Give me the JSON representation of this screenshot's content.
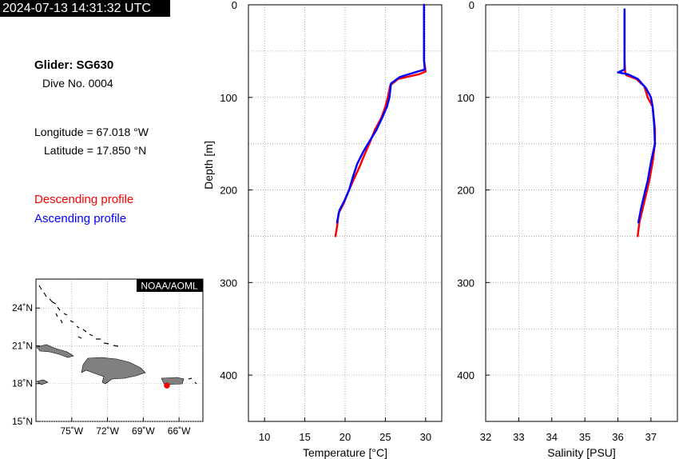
{
  "header": {
    "timestamp": "2024-07-13 14:31:32 UTC"
  },
  "info": {
    "glider": "Glider: SG630",
    "dive": "Dive No. 0004",
    "longitude": "Longitude = 67.018 °W",
    "latitude": "Latitude = 17.850 °N",
    "descending_label": "Descending profile",
    "ascending_label": "Ascending profile"
  },
  "colors": {
    "descending": "#ff0000",
    "ascending": "#0000ff",
    "land": "#808080"
  },
  "map": {
    "credit": "NOAA/AOML",
    "lon_ticks": [
      "75˚W",
      "72˚W",
      "69˚W",
      "66˚W"
    ],
    "lat_ticks": [
      "24˚N",
      "21˚N",
      "18˚N",
      "15˚N"
    ],
    "glider_position": {
      "lon": -67.018,
      "lat": 17.85
    }
  },
  "chart_data": [
    {
      "type": "line",
      "xlabel": "Temperature [°C]",
      "ylabel": "Depth [m]",
      "xlim": [
        8,
        32
      ],
      "ylim": [
        450,
        0
      ],
      "xticks": [
        10,
        15,
        20,
        25,
        30
      ],
      "yticks": [
        0,
        100,
        200,
        300,
        400
      ],
      "grid": true,
      "series": [
        {
          "name": "Descending profile",
          "x": [
            29.8,
            29.8,
            29.8,
            29.8,
            30.0,
            29.2,
            26.6,
            25.6,
            25.3,
            25.0,
            24.5,
            23.7,
            23.0,
            22.4,
            21.8,
            21.1,
            20.4,
            19.8,
            19.2,
            19.0,
            18.8
          ],
          "y": [
            0,
            20,
            40,
            60,
            72,
            75,
            80,
            87,
            100,
            110,
            122,
            135,
            150,
            162,
            175,
            188,
            202,
            215,
            225,
            240,
            250
          ]
        },
        {
          "name": "Ascending profile",
          "x": [
            29.8,
            29.8,
            29.8,
            29.8,
            29.9,
            29.0,
            26.8,
            25.7,
            25.5,
            25.2,
            24.6,
            23.9,
            23.2,
            22.3,
            21.5,
            21.0,
            20.5,
            19.9,
            19.3,
            19.0
          ],
          "y": [
            0,
            20,
            40,
            60,
            70,
            72,
            78,
            85,
            100,
            110,
            122,
            135,
            145,
            158,
            172,
            185,
            200,
            212,
            222,
            235
          ]
        }
      ]
    },
    {
      "type": "line",
      "xlabel": "Salinity [PSU]",
      "ylabel": "",
      "xlim": [
        32,
        37.8
      ],
      "ylim": [
        450,
        0
      ],
      "xticks": [
        32,
        33,
        34,
        35,
        36,
        37
      ],
      "yticks": [
        0,
        100,
        200,
        300,
        400
      ],
      "grid": true,
      "series": [
        {
          "name": "Descending profile",
          "x": [
            36.2,
            36.2,
            36.2,
            36.22,
            36.25,
            36.55,
            36.8,
            36.9,
            37.05,
            37.08,
            37.12,
            37.12,
            37.05,
            36.95,
            36.85,
            36.75,
            36.65,
            36.6
          ],
          "y": [
            5,
            30,
            60,
            73,
            76,
            80,
            88,
            100,
            110,
            120,
            135,
            150,
            170,
            190,
            205,
            220,
            235,
            250
          ]
        },
        {
          "name": "Ascending profile",
          "x": [
            36.2,
            36.2,
            36.2,
            36.2,
            36.0,
            36.3,
            36.6,
            36.85,
            37.0,
            37.05,
            37.1,
            37.12,
            37.0,
            36.9,
            36.8,
            36.7,
            36.62
          ],
          "y": [
            5,
            30,
            55,
            70,
            73,
            75,
            80,
            90,
            100,
            110,
            130,
            150,
            170,
            190,
            205,
            220,
            235
          ]
        }
      ]
    }
  ]
}
